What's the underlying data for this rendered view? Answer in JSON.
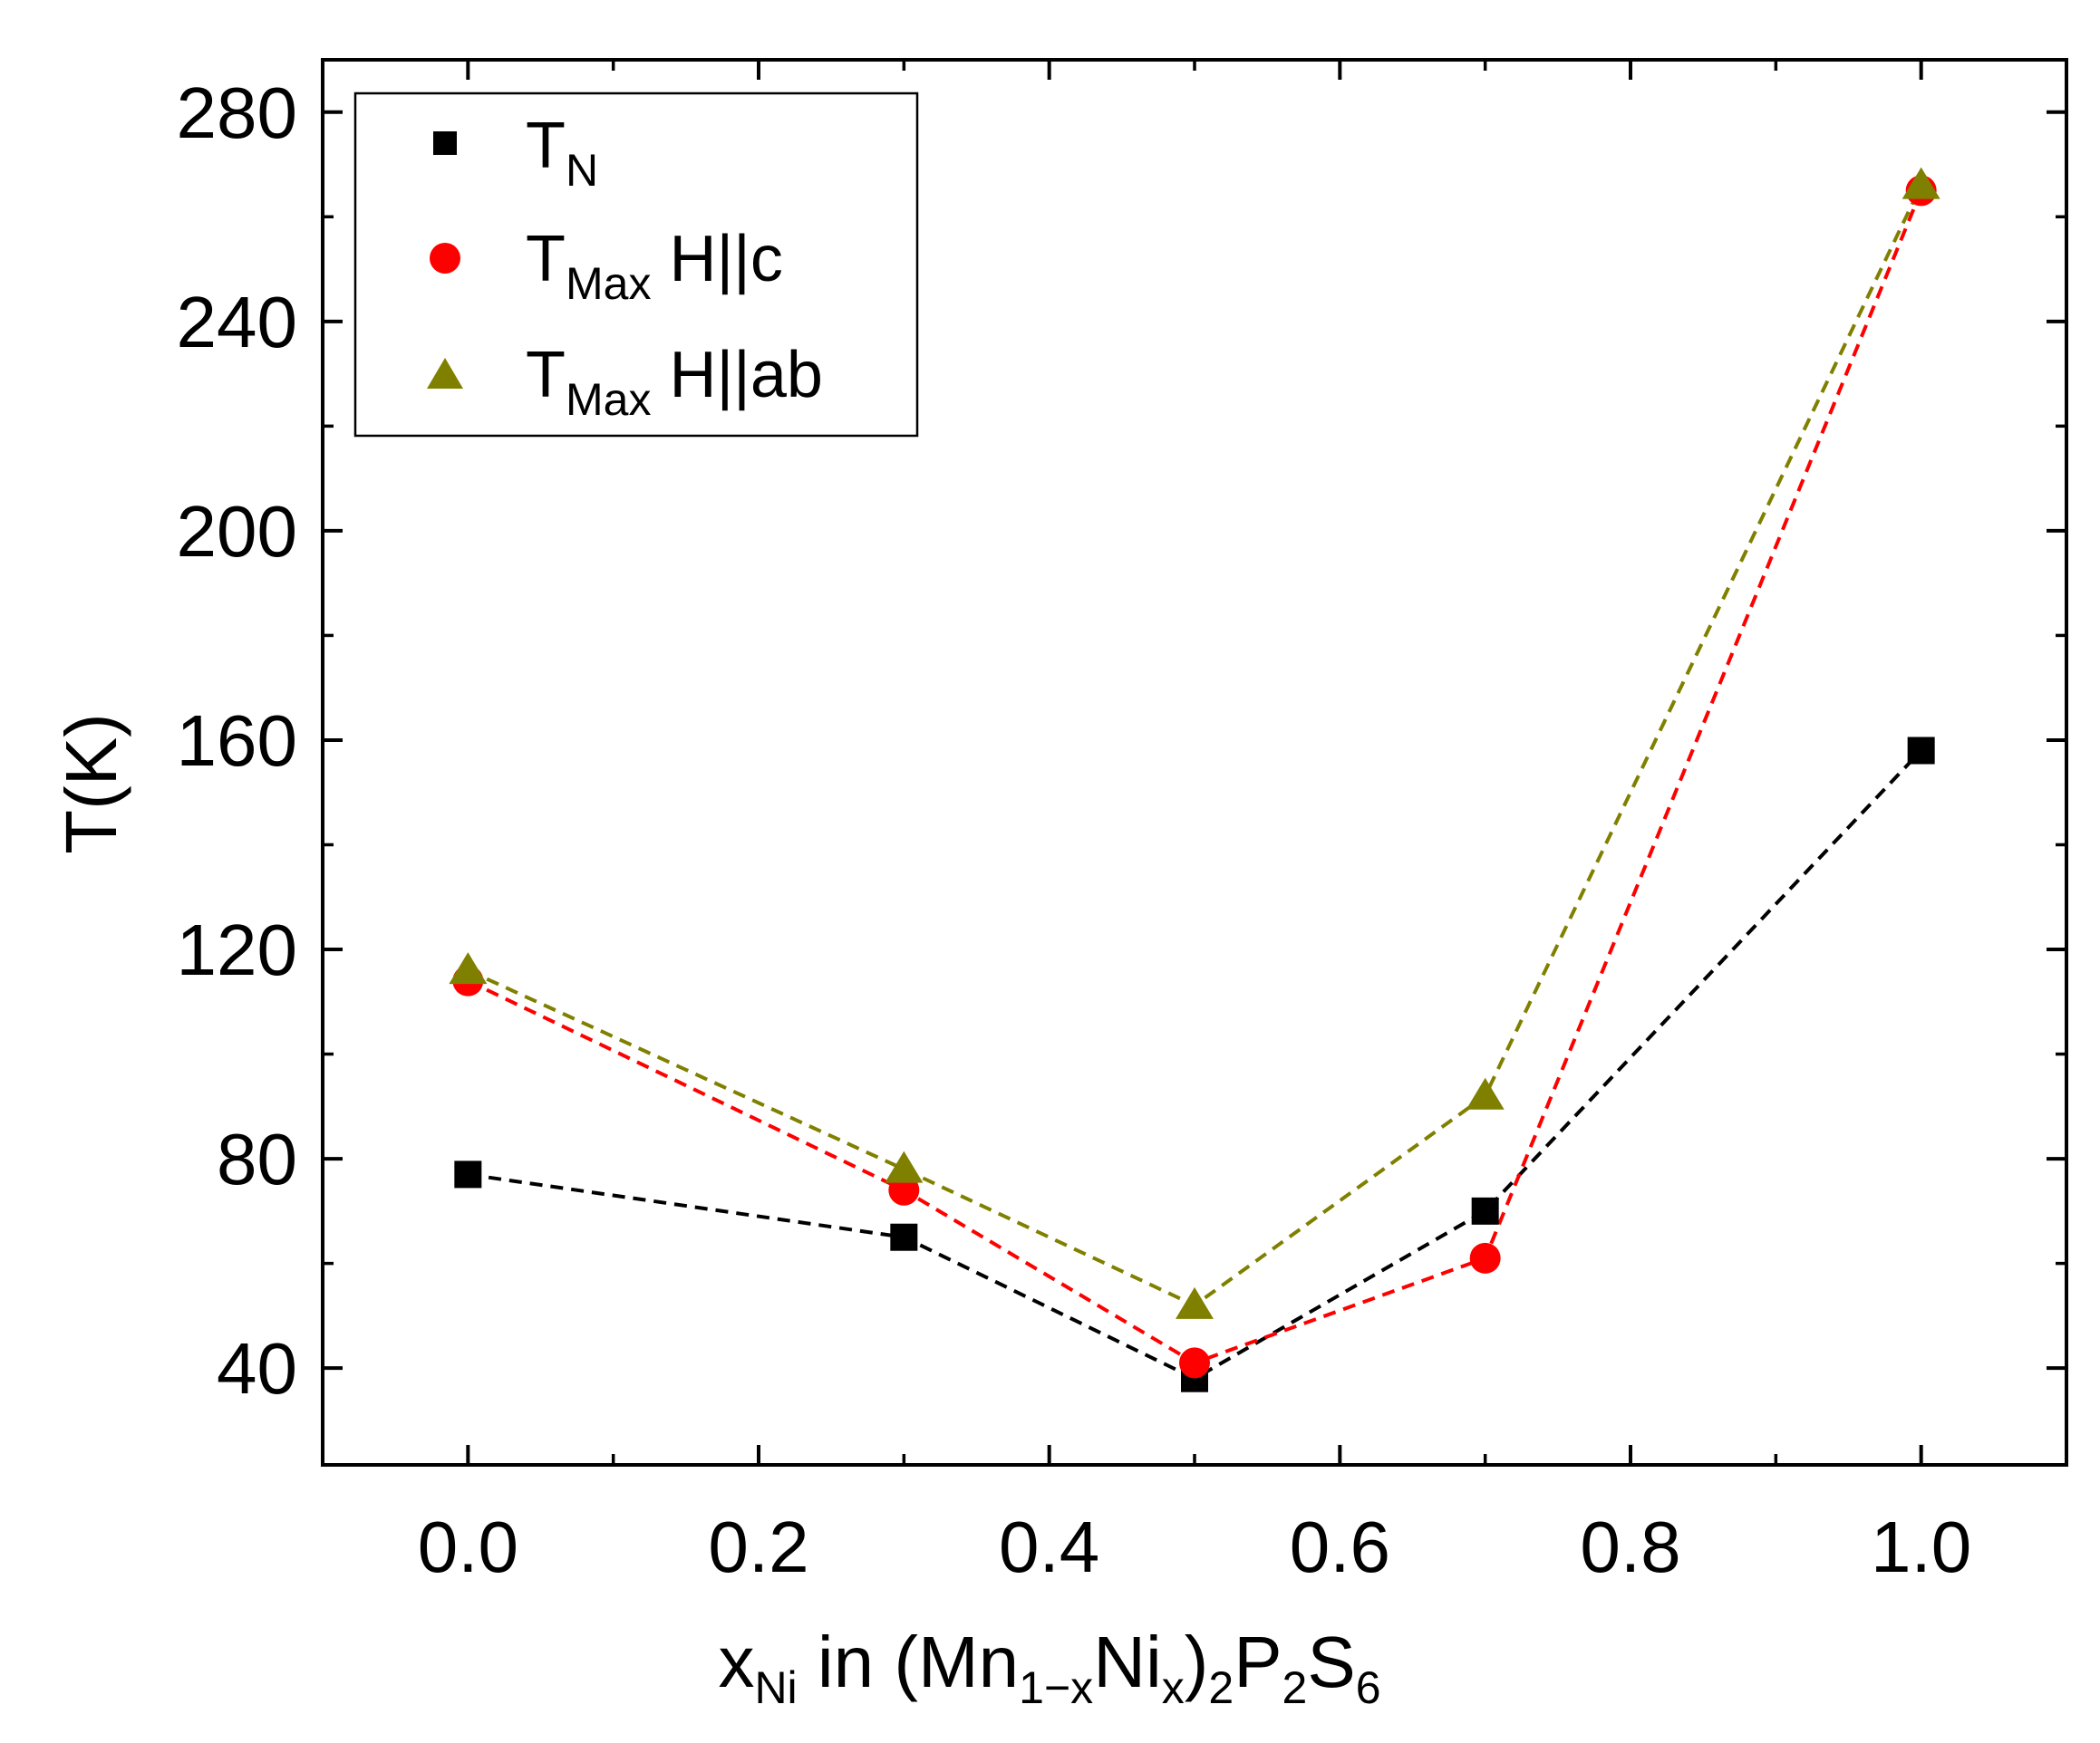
{
  "chart_data": {
    "type": "scatter",
    "xlabel_parts": {
      "x": "x",
      "x_sub": "Ni",
      "in": " in (Mn",
      "one_minus_x": "1−x",
      "ni": "Ni",
      "x2": "x",
      "close": ")",
      "two_a": "2",
      "P": "P",
      "two_b": "2",
      "S": "S",
      "six": "6"
    },
    "ylabel": "T(K)",
    "xlim": [
      -0.1,
      1.1
    ],
    "ylim": [
      21.5,
      290
    ],
    "xticks": [
      0.0,
      0.2,
      0.4,
      0.6,
      0.8,
      1.0
    ],
    "xtick_labels": [
      "0.0",
      "0.2",
      "0.4",
      "0.6",
      "0.8",
      "1.0"
    ],
    "yticks": [
      40,
      80,
      120,
      160,
      200,
      240,
      280
    ],
    "ytick_labels": [
      "40",
      "80",
      "120",
      "160",
      "200",
      "240",
      "280"
    ],
    "x": [
      0.0,
      0.3,
      0.5,
      0.7,
      1.0
    ],
    "series": [
      {
        "name": "T_N",
        "label_main": "T",
        "label_sub": "N",
        "label_rest": "",
        "marker": "square",
        "color": "#000000",
        "line_color": "#000000",
        "values": [
          77,
          65,
          38,
          70,
          158
        ]
      },
      {
        "name": "T_Max H||c",
        "label_main": "T",
        "label_sub": "Max",
        "label_rest": " H||c",
        "marker": "circle",
        "color": "#ff0000",
        "line_color": "#ff0000",
        "values": [
          114,
          74,
          41,
          61,
          265
        ]
      },
      {
        "name": "T_Max H||ab",
        "label_main": "T",
        "label_sub": "Max",
        "label_rest": " H||ab",
        "marker": "triangle",
        "color": "#808000",
        "line_color": "#808000",
        "values": [
          116,
          78,
          52,
          92,
          266
        ]
      }
    ],
    "legend_position": "top-left"
  }
}
